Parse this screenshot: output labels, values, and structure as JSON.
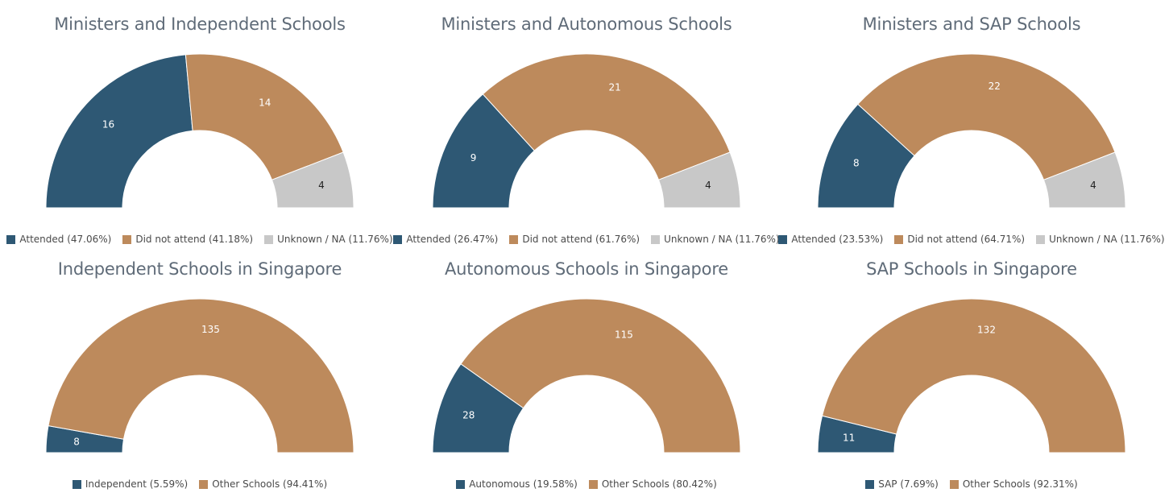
{
  "chart_data": [
    {
      "type": "pie",
      "title": "Ministers and Independent Schools",
      "series": [
        {
          "name": "Attended (47.06%)",
          "value": 16,
          "color": "#2e5874"
        },
        {
          "name": "Did not attend (41.18%)",
          "value": 14,
          "color": "#bd8a5c"
        },
        {
          "name": "Unknown / NA (11.76%)",
          "value": 4,
          "color": "#c8c8c8"
        }
      ]
    },
    {
      "type": "pie",
      "title": "Ministers and Autonomous Schools",
      "series": [
        {
          "name": "Attended (26.47%)",
          "value": 9,
          "color": "#2e5874"
        },
        {
          "name": "Did not attend (61.76%)",
          "value": 21,
          "color": "#bd8a5c"
        },
        {
          "name": "Unknown / NA (11.76%)",
          "value": 4,
          "color": "#c8c8c8"
        }
      ]
    },
    {
      "type": "pie",
      "title": "Ministers and SAP Schools",
      "series": [
        {
          "name": "Attended (23.53%)",
          "value": 8,
          "color": "#2e5874"
        },
        {
          "name": "Did not attend (64.71%)",
          "value": 22,
          "color": "#bd8a5c"
        },
        {
          "name": "Unknown / NA (11.76%)",
          "value": 4,
          "color": "#c8c8c8"
        }
      ]
    },
    {
      "type": "pie",
      "title": "Independent Schools in Singapore",
      "series": [
        {
          "name": "Independent (5.59%)",
          "value": 8,
          "color": "#2e5874"
        },
        {
          "name": "Other Schools (94.41%)",
          "value": 135,
          "color": "#bd8a5c"
        }
      ]
    },
    {
      "type": "pie",
      "title": "Autonomous Schools in Singapore",
      "series": [
        {
          "name": "Autonomous (19.58%)",
          "value": 28,
          "color": "#2e5874"
        },
        {
          "name": "Other Schools (80.42%)",
          "value": 115,
          "color": "#bd8a5c"
        }
      ]
    },
    {
      "type": "pie",
      "title": "SAP Schools in Singapore",
      "series": [
        {
          "name": "SAP (7.69%)",
          "value": 11,
          "color": "#2e5874"
        },
        {
          "name": "Other Schools (92.31%)",
          "value": 132,
          "color": "#bd8a5c"
        }
      ]
    }
  ]
}
